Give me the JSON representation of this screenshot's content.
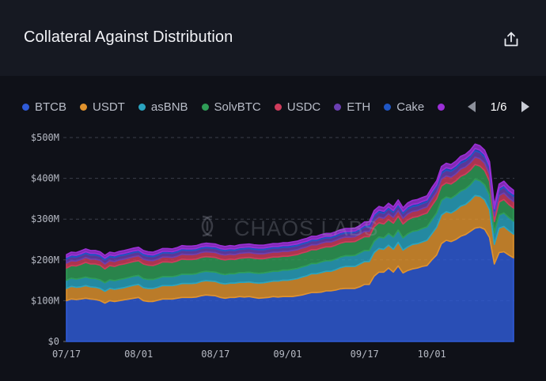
{
  "header": {
    "title": "Collateral Against Distribution",
    "share_icon": "share-icon"
  },
  "legend": {
    "items": [
      {
        "label": "BTCB",
        "color": "#2f5bd8"
      },
      {
        "label": "USDT",
        "color": "#e0922d"
      },
      {
        "label": "asBNB",
        "color": "#2aa4c0"
      },
      {
        "label": "SolvBTC",
        "color": "#2f9d57"
      },
      {
        "label": "USDC",
        "color": "#cf3c5c"
      },
      {
        "label": "ETH",
        "color": "#6b3fb2"
      },
      {
        "label": "Cake",
        "color": "#1f56c4"
      },
      {
        "label": "",
        "color": "#9b2fd6"
      }
    ],
    "pager": {
      "text": "1/6",
      "prev_icon": "chevron-left-icon",
      "next_icon": "chevron-right-icon"
    }
  },
  "watermark": {
    "text": "CHAOS LABS",
    "logo_icon": "chaos-labs-logo-icon"
  },
  "chart_data": {
    "type": "area",
    "stacked": true,
    "grid": true,
    "ylim": [
      0,
      500
    ],
    "y_ticks": [
      0,
      100,
      200,
      300,
      400,
      500
    ],
    "y_tick_labels": [
      "$0",
      "$100M",
      "$200M",
      "$300M",
      "$400M",
      "$500M"
    ],
    "x_tick_labels": [
      "07/17",
      "08/01",
      "08/17",
      "09/01",
      "09/17",
      "10/01"
    ],
    "x_tick_index": [
      0,
      15,
      31,
      46,
      62,
      76
    ],
    "x_start": "07/17",
    "series": [
      {
        "name": "BTCB",
        "color": "#2f5bd8",
        "values": [
          100,
          104,
          103,
          104,
          106,
          104,
          103,
          100,
          94,
          100,
          98,
          100,
          102,
          104,
          106,
          108,
          100,
          98,
          98,
          101,
          104,
          104,
          104,
          106,
          108,
          108,
          108,
          109,
          112,
          114,
          113,
          112,
          108,
          106,
          108,
          108,
          110,
          109,
          110,
          108,
          106,
          107,
          108,
          110,
          109,
          110,
          110,
          110,
          112,
          114,
          117,
          120,
          120,
          121,
          124,
          124,
          126,
          129,
          130,
          130,
          130,
          134,
          140,
          140,
          160,
          170,
          170,
          180,
          170,
          185,
          168,
          174,
          178,
          180,
          184,
          186,
          200,
          212,
          240,
          248,
          245,
          250,
          258,
          262,
          270,
          278,
          280,
          275,
          255,
          190,
          218,
          220,
          212,
          205
        ]
      },
      {
        "name": "USDT",
        "color": "#e0922d",
        "values": [
          30,
          31,
          30,
          30,
          31,
          30,
          30,
          30,
          29,
          30,
          30,
          30,
          30,
          31,
          32,
          32,
          32,
          32,
          32,
          32,
          33,
          33,
          33,
          33,
          34,
          34,
          34,
          34,
          35,
          35,
          35,
          35,
          35,
          35,
          35,
          35,
          35,
          36,
          36,
          36,
          37,
          37,
          38,
          38,
          39,
          40,
          40,
          42,
          42,
          44,
          44,
          46,
          46,
          48,
          48,
          48,
          50,
          52,
          54,
          54,
          54,
          56,
          56,
          56,
          58,
          58,
          56,
          56,
          56,
          58,
          56,
          58,
          60,
          60,
          60,
          62,
          64,
          68,
          70,
          70,
          70,
          72,
          74,
          74,
          76,
          80,
          76,
          72,
          68,
          48,
          60,
          62,
          60,
          58
        ]
      },
      {
        "name": "asBNB",
        "color": "#2aa4c0",
        "values": [
          20,
          20,
          20,
          21,
          21,
          21,
          21,
          21,
          21,
          21,
          21,
          22,
          22,
          22,
          22,
          22,
          22,
          22,
          22,
          22,
          22,
          22,
          22,
          22,
          23,
          23,
          23,
          23,
          23,
          23,
          23,
          23,
          23,
          23,
          23,
          23,
          24,
          24,
          24,
          24,
          24,
          24,
          24,
          24,
          24,
          25,
          25,
          25,
          25,
          25,
          25,
          25,
          25,
          26,
          26,
          26,
          26,
          26,
          26,
          26,
          27,
          27,
          27,
          27,
          28,
          28,
          28,
          29,
          30,
          30,
          30,
          32,
          32,
          32,
          33,
          33,
          34,
          35,
          36,
          36,
          36,
          37,
          37,
          38,
          38,
          40,
          38,
          37,
          36,
          28,
          32,
          33,
          32,
          32
        ]
      },
      {
        "name": "SolvBTC",
        "color": "#2f9d57",
        "values": [
          30,
          31,
          32,
          34,
          36,
          35,
          36,
          36,
          34,
          35,
          35,
          36,
          36,
          36,
          36,
          36,
          36,
          35,
          34,
          35,
          36,
          36,
          35,
          36,
          37,
          36,
          36,
          36,
          36,
          36,
          36,
          36,
          36,
          36,
          36,
          35,
          35,
          36,
          36,
          36,
          36,
          35,
          35,
          35,
          35,
          34,
          34,
          34,
          34,
          34,
          34,
          34,
          34,
          34,
          34,
          34,
          34,
          34,
          34,
          34,
          34,
          34,
          34,
          34,
          35,
          35,
          34,
          34,
          34,
          34,
          34,
          34,
          34,
          34,
          34,
          34,
          35,
          35,
          35,
          35,
          35,
          35,
          36,
          36,
          36,
          36,
          36,
          35,
          34,
          28,
          32,
          33,
          32,
          32
        ]
      },
      {
        "name": "USDC",
        "color": "#cf3c5c",
        "values": [
          12,
          12,
          12,
          12,
          12,
          12,
          12,
          12,
          12,
          12,
          12,
          12,
          12,
          12,
          12,
          12,
          12,
          12,
          12,
          12,
          12,
          12,
          12,
          12,
          12,
          12,
          12,
          12,
          12,
          12,
          12,
          12,
          12,
          12,
          12,
          12,
          12,
          12,
          12,
          12,
          12,
          12,
          12,
          12,
          12,
          12,
          12,
          12,
          12,
          12,
          12,
          12,
          12,
          12,
          12,
          12,
          12,
          12,
          12,
          12,
          12,
          12,
          13,
          13,
          14,
          14,
          14,
          14,
          14,
          14,
          14,
          15,
          15,
          15,
          15,
          15,
          16,
          16,
          17,
          17,
          17,
          17,
          18,
          18,
          18,
          18,
          18,
          18,
          17,
          14,
          16,
          16,
          16,
          16
        ]
      },
      {
        "name": "ETH",
        "color": "#6b3fb2",
        "values": [
          10,
          10,
          10,
          10,
          10,
          10,
          10,
          10,
          10,
          10,
          10,
          10,
          10,
          10,
          10,
          10,
          10,
          10,
          10,
          10,
          10,
          10,
          10,
          10,
          10,
          10,
          10,
          10,
          10,
          10,
          10,
          10,
          10,
          10,
          10,
          10,
          10,
          10,
          10,
          10,
          10,
          10,
          10,
          10,
          10,
          10,
          10,
          10,
          10,
          10,
          10,
          10,
          10,
          10,
          10,
          10,
          10,
          10,
          10,
          10,
          10,
          10,
          11,
          11,
          12,
          12,
          12,
          12,
          12,
          12,
          12,
          12,
          12,
          12,
          12,
          12,
          13,
          13,
          14,
          14,
          14,
          14,
          14,
          14,
          14,
          15,
          15,
          15,
          14,
          12,
          13,
          14,
          13,
          13
        ]
      },
      {
        "name": "Cake",
        "color": "#1f56c4",
        "values": [
          4,
          4,
          4,
          4,
          4,
          4,
          4,
          4,
          4,
          4,
          4,
          4,
          4,
          4,
          4,
          4,
          4,
          4,
          4,
          4,
          4,
          4,
          4,
          4,
          4,
          4,
          4,
          4,
          4,
          4,
          4,
          4,
          4,
          4,
          4,
          4,
          4,
          4,
          4,
          4,
          4,
          4,
          4,
          4,
          4,
          4,
          4,
          4,
          4,
          4,
          4,
          4,
          4,
          4,
          4,
          4,
          4,
          4,
          4,
          4,
          4,
          4,
          4,
          5,
          5,
          5,
          5,
          5,
          5,
          5,
          5,
          5,
          5,
          5,
          5,
          5,
          5,
          5,
          6,
          6,
          6,
          6,
          6,
          6,
          6,
          6,
          6,
          6,
          6,
          5,
          5,
          5,
          5,
          5
        ]
      },
      {
        "name": "",
        "color": "#9b2fd6",
        "values": [
          7,
          7,
          7,
          7,
          7,
          7,
          7,
          7,
          7,
          7,
          7,
          7,
          7,
          7,
          7,
          7,
          7,
          7,
          7,
          7,
          7,
          7,
          7,
          7,
          7,
          7,
          7,
          7,
          7,
          7,
          7,
          7,
          7,
          7,
          7,
          7,
          7,
          7,
          7,
          7,
          7,
          7,
          7,
          7,
          7,
          7,
          7,
          7,
          7,
          7,
          7,
          7,
          7,
          7,
          7,
          7,
          7,
          7,
          7,
          7,
          7,
          7,
          8,
          8,
          9,
          9,
          9,
          9,
          9,
          9,
          9,
          10,
          10,
          10,
          10,
          10,
          10,
          10,
          11,
          11,
          11,
          11,
          11,
          11,
          11,
          11,
          11,
          11,
          11,
          9,
          10,
          10,
          10,
          10
        ]
      }
    ]
  }
}
